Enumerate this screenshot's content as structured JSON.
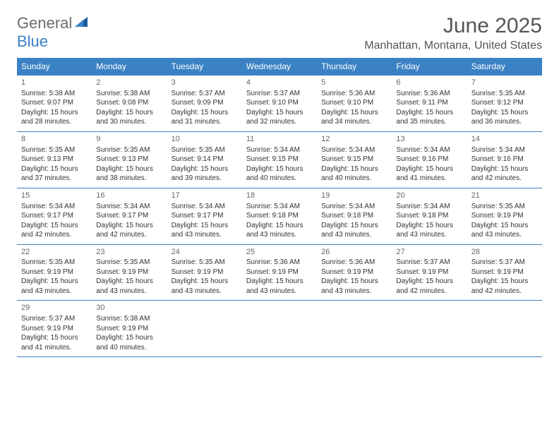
{
  "logo": {
    "text1": "General",
    "text2": "Blue"
  },
  "title": "June 2025",
  "location": "Manhattan, Montana, United States",
  "day_headers": [
    "Sunday",
    "Monday",
    "Tuesday",
    "Wednesday",
    "Thursday",
    "Friday",
    "Saturday"
  ],
  "colors": {
    "header_bg": "#3b82c4",
    "header_text": "#ffffff",
    "border": "#3b82c4",
    "title_text": "#555555",
    "body_text": "#333333",
    "logo_gray": "#6b6b6b",
    "logo_blue": "#3b82c4"
  },
  "weeks": [
    [
      {
        "n": "1",
        "sr": "5:38 AM",
        "ss": "9:07 PM",
        "dl": "15 hours and 28 minutes."
      },
      {
        "n": "2",
        "sr": "5:38 AM",
        "ss": "9:08 PM",
        "dl": "15 hours and 30 minutes."
      },
      {
        "n": "3",
        "sr": "5:37 AM",
        "ss": "9:09 PM",
        "dl": "15 hours and 31 minutes."
      },
      {
        "n": "4",
        "sr": "5:37 AM",
        "ss": "9:10 PM",
        "dl": "15 hours and 32 minutes."
      },
      {
        "n": "5",
        "sr": "5:36 AM",
        "ss": "9:10 PM",
        "dl": "15 hours and 34 minutes."
      },
      {
        "n": "6",
        "sr": "5:36 AM",
        "ss": "9:11 PM",
        "dl": "15 hours and 35 minutes."
      },
      {
        "n": "7",
        "sr": "5:35 AM",
        "ss": "9:12 PM",
        "dl": "15 hours and 36 minutes."
      }
    ],
    [
      {
        "n": "8",
        "sr": "5:35 AM",
        "ss": "9:13 PM",
        "dl": "15 hours and 37 minutes."
      },
      {
        "n": "9",
        "sr": "5:35 AM",
        "ss": "9:13 PM",
        "dl": "15 hours and 38 minutes."
      },
      {
        "n": "10",
        "sr": "5:35 AM",
        "ss": "9:14 PM",
        "dl": "15 hours and 39 minutes."
      },
      {
        "n": "11",
        "sr": "5:34 AM",
        "ss": "9:15 PM",
        "dl": "15 hours and 40 minutes."
      },
      {
        "n": "12",
        "sr": "5:34 AM",
        "ss": "9:15 PM",
        "dl": "15 hours and 40 minutes."
      },
      {
        "n": "13",
        "sr": "5:34 AM",
        "ss": "9:16 PM",
        "dl": "15 hours and 41 minutes."
      },
      {
        "n": "14",
        "sr": "5:34 AM",
        "ss": "9:16 PM",
        "dl": "15 hours and 42 minutes."
      }
    ],
    [
      {
        "n": "15",
        "sr": "5:34 AM",
        "ss": "9:17 PM",
        "dl": "15 hours and 42 minutes."
      },
      {
        "n": "16",
        "sr": "5:34 AM",
        "ss": "9:17 PM",
        "dl": "15 hours and 42 minutes."
      },
      {
        "n": "17",
        "sr": "5:34 AM",
        "ss": "9:17 PM",
        "dl": "15 hours and 43 minutes."
      },
      {
        "n": "18",
        "sr": "5:34 AM",
        "ss": "9:18 PM",
        "dl": "15 hours and 43 minutes."
      },
      {
        "n": "19",
        "sr": "5:34 AM",
        "ss": "9:18 PM",
        "dl": "15 hours and 43 minutes."
      },
      {
        "n": "20",
        "sr": "5:34 AM",
        "ss": "9:18 PM",
        "dl": "15 hours and 43 minutes."
      },
      {
        "n": "21",
        "sr": "5:35 AM",
        "ss": "9:19 PM",
        "dl": "15 hours and 43 minutes."
      }
    ],
    [
      {
        "n": "22",
        "sr": "5:35 AM",
        "ss": "9:19 PM",
        "dl": "15 hours and 43 minutes."
      },
      {
        "n": "23",
        "sr": "5:35 AM",
        "ss": "9:19 PM",
        "dl": "15 hours and 43 minutes."
      },
      {
        "n": "24",
        "sr": "5:35 AM",
        "ss": "9:19 PM",
        "dl": "15 hours and 43 minutes."
      },
      {
        "n": "25",
        "sr": "5:36 AM",
        "ss": "9:19 PM",
        "dl": "15 hours and 43 minutes."
      },
      {
        "n": "26",
        "sr": "5:36 AM",
        "ss": "9:19 PM",
        "dl": "15 hours and 43 minutes."
      },
      {
        "n": "27",
        "sr": "5:37 AM",
        "ss": "9:19 PM",
        "dl": "15 hours and 42 minutes."
      },
      {
        "n": "28",
        "sr": "5:37 AM",
        "ss": "9:19 PM",
        "dl": "15 hours and 42 minutes."
      }
    ],
    [
      {
        "n": "29",
        "sr": "5:37 AM",
        "ss": "9:19 PM",
        "dl": "15 hours and 41 minutes."
      },
      {
        "n": "30",
        "sr": "5:38 AM",
        "ss": "9:19 PM",
        "dl": "15 hours and 40 minutes."
      },
      null,
      null,
      null,
      null,
      null
    ]
  ],
  "labels": {
    "sunrise": "Sunrise: ",
    "sunset": "Sunset: ",
    "daylight": "Daylight: "
  }
}
